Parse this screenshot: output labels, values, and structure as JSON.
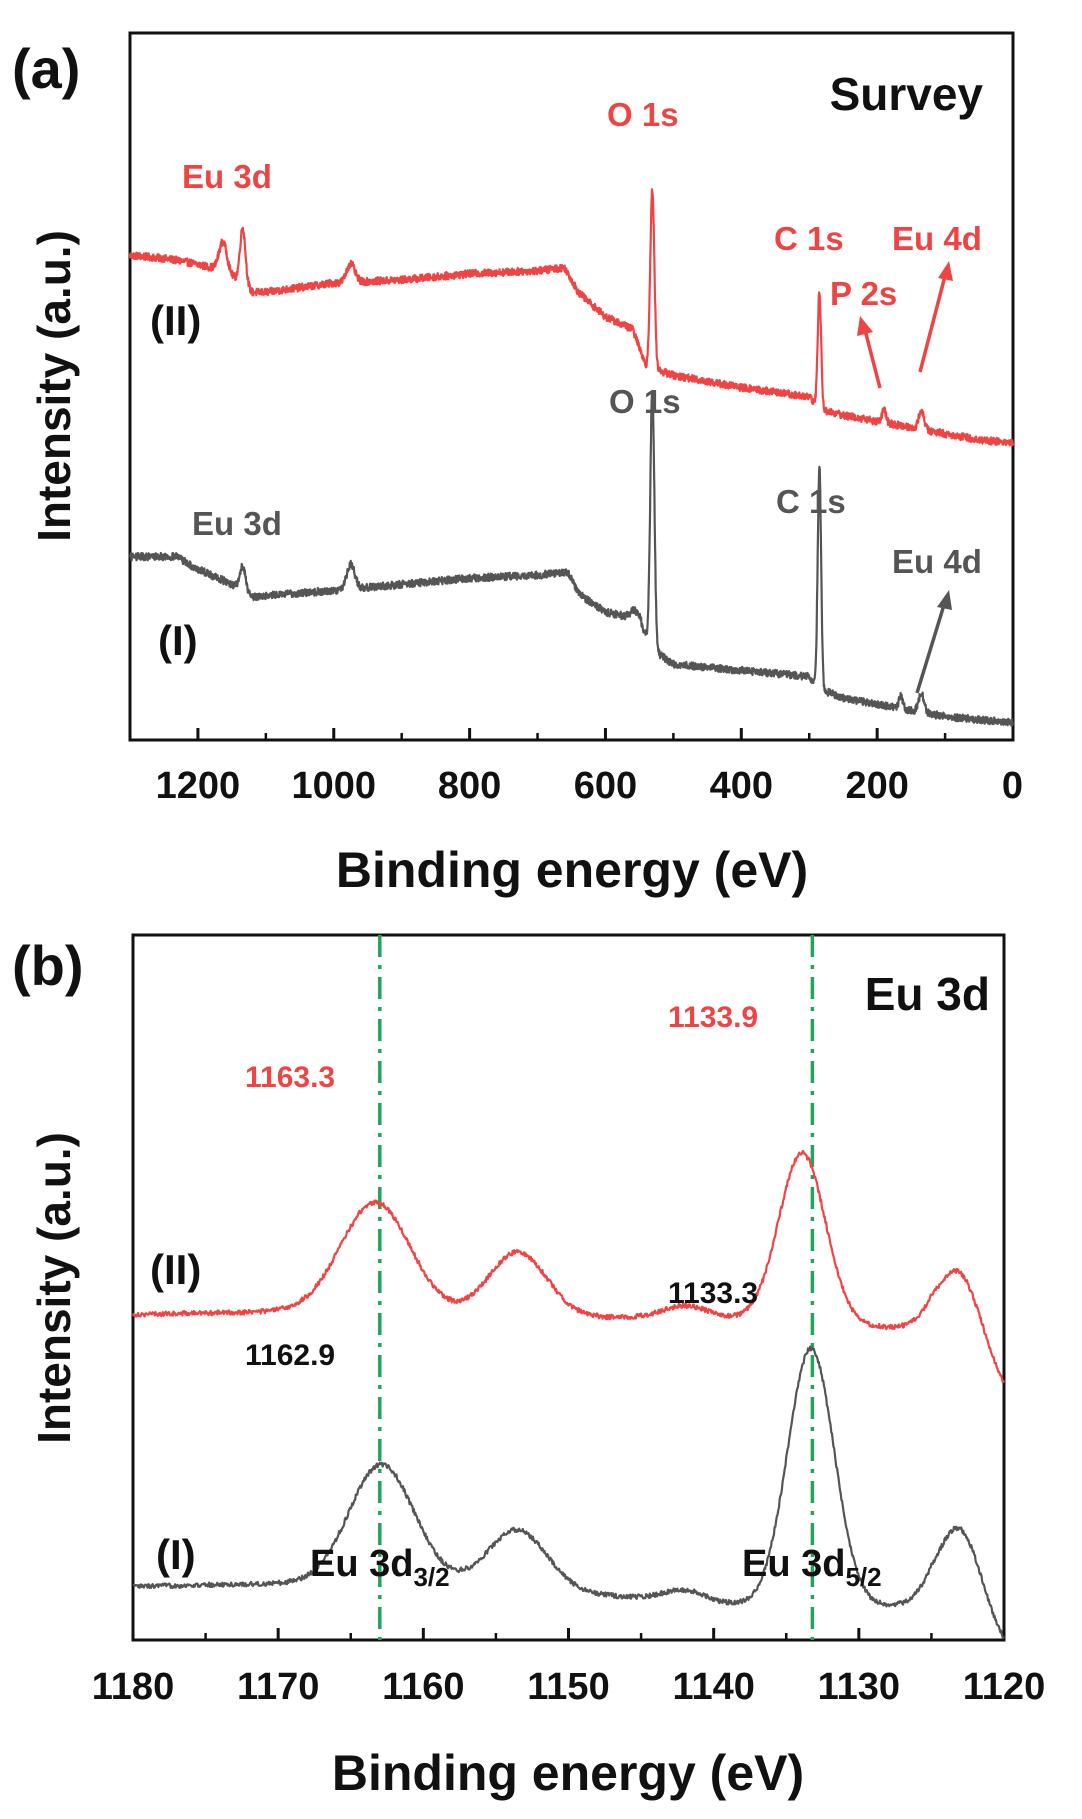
{
  "colors": {
    "red": "#ef4444",
    "gray": "#555555",
    "green": "#22a55b",
    "black": "#111111"
  },
  "chart_data": [
    {
      "type": "line",
      "panel_label": "(a)",
      "title": "Survey",
      "xlabel": "Binding energy (eV)",
      "ylabel": "Intensity (a.u.)",
      "xlim": [
        1300,
        0
      ],
      "ylim": [
        0,
        1
      ],
      "x_ticks": [
        "1200",
        "1000",
        "800",
        "600",
        "400",
        "200",
        "0"
      ],
      "x_tick_values": [
        1200,
        1000,
        800,
        600,
        400,
        200,
        0
      ],
      "series": [
        {
          "name": "(II)",
          "color": "#ef4444",
          "baseline": [
            [
              1300,
              0.78
            ],
            [
              1250,
              0.775
            ],
            [
              1220,
              0.77
            ],
            [
              1180,
              0.76
            ],
            [
              1140,
              0.74
            ],
            [
              1120,
              0.72
            ],
            [
              1100,
              0.72
            ],
            [
              1000,
              0.735
            ],
            [
              900,
              0.74
            ],
            [
              800,
              0.75
            ],
            [
              700,
              0.755
            ],
            [
              660,
              0.76
            ],
            [
              640,
              0.72
            ],
            [
              600,
              0.68
            ],
            [
              560,
              0.66
            ],
            [
              540,
              0.6
            ],
            [
              500,
              0.585
            ],
            [
              400,
              0.565
            ],
            [
              300,
              0.55
            ],
            [
              285,
              0.53
            ],
            [
              250,
              0.52
            ],
            [
              200,
              0.51
            ],
            [
              150,
              0.5
            ],
            [
              100,
              0.49
            ],
            [
              50,
              0.48
            ],
            [
              0,
              0.475
            ]
          ],
          "peaks": [
            [
              1163,
              0.05,
              6
            ],
            [
              1134,
              0.09,
              4
            ],
            [
              975,
              0.03,
              6
            ],
            [
              531,
              0.29,
              3
            ],
            [
              285,
              0.19,
              2.5
            ],
            [
              190,
              0.02,
              3
            ],
            [
              135,
              0.03,
              4
            ]
          ],
          "noise": 0.006
        },
        {
          "name": "(I)",
          "color": "#555555",
          "baseline": [
            [
              1300,
              0.29
            ],
            [
              1230,
              0.29
            ],
            [
              1210,
              0.275
            ],
            [
              1180,
              0.26
            ],
            [
              1140,
              0.24
            ],
            [
              1120,
              0.225
            ],
            [
              1000,
              0.235
            ],
            [
              900,
              0.245
            ],
            [
              800,
              0.255
            ],
            [
              700,
              0.26
            ],
            [
              655,
              0.265
            ],
            [
              640,
              0.23
            ],
            [
              600,
              0.2
            ],
            [
              560,
              0.19
            ],
            [
              545,
              0.15
            ],
            [
              500,
              0.115
            ],
            [
              400,
              0.105
            ],
            [
              300,
              0.095
            ],
            [
              285,
              0.075
            ],
            [
              250,
              0.06
            ],
            [
              200,
              0.05
            ],
            [
              150,
              0.04
            ],
            [
              100,
              0.03
            ],
            [
              50,
              0.025
            ],
            [
              0,
              0.02
            ]
          ],
          "peaks": [
            [
              1134,
              0.04,
              4
            ],
            [
              975,
              0.04,
              6
            ],
            [
              550,
              0.03,
              8
            ],
            [
              531,
              0.42,
              3
            ],
            [
              285,
              0.36,
              2.5
            ],
            [
              165,
              0.02,
              3
            ],
            [
              135,
              0.03,
              4
            ]
          ],
          "noise": 0.006
        }
      ],
      "annotations": [
        {
          "id": "II-eu3d",
          "text": "Eu 3d",
          "color": "#ef4444"
        },
        {
          "id": "II-o1s",
          "text": "O 1s",
          "color": "#ef4444"
        },
        {
          "id": "II-c1s",
          "text": "C 1s",
          "color": "#ef4444"
        },
        {
          "id": "II-eu4d",
          "text": "Eu 4d",
          "color": "#ef4444"
        },
        {
          "id": "II-p2s",
          "text": "P 2s",
          "color": "#ef4444"
        },
        {
          "id": "I-eu3d",
          "text": "Eu 3d",
          "color": "#555555"
        },
        {
          "id": "I-o1s",
          "text": "O 1s",
          "color": "#555555"
        },
        {
          "id": "I-c1s",
          "text": "C 1s",
          "color": "#555555"
        },
        {
          "id": "I-eu4d",
          "text": "Eu 4d",
          "color": "#555555"
        }
      ]
    },
    {
      "type": "line",
      "panel_label": "(b)",
      "title": "Eu 3d",
      "xlabel": "Binding energy (eV)",
      "ylabel": "Intensity (a.u.)",
      "xlim": [
        1180,
        1120
      ],
      "ylim": [
        0,
        1
      ],
      "x_ticks": [
        "1180",
        "1170",
        "1160",
        "1150",
        "1140",
        "1130",
        "1120"
      ],
      "x_tick_values": [
        1180,
        1170,
        1160,
        1150,
        1140,
        1130,
        1120
      ],
      "series": [
        {
          "name": "(II)",
          "color": "#ef4444",
          "baseline": [
            [
              1180,
              0.565
            ],
            [
              1170,
              0.57
            ],
            [
              1160,
              0.565
            ],
            [
              1150,
              0.56
            ],
            [
              1140,
              0.56
            ],
            [
              1130,
              0.545
            ],
            [
              1125,
              0.54
            ],
            [
              1120,
              0.43
            ]
          ],
          "peaks": [
            [
              1163.3,
              0.19,
              2.4
            ],
            [
              1153.5,
              0.11,
              2.0
            ],
            [
              1142,
              0.02,
              1.5
            ],
            [
              1133.9,
              0.29,
              1.6
            ],
            [
              1123,
              0.14,
              1.5
            ]
          ],
          "noise": 0.004
        },
        {
          "name": "(I)",
          "color": "#555555",
          "baseline": [
            [
              1180,
              0.1
            ],
            [
              1170,
              0.105
            ],
            [
              1160,
              0.11
            ],
            [
              1150,
              0.09
            ],
            [
              1140,
              0.07
            ],
            [
              1130,
              0.065
            ],
            [
              1125,
              0.07
            ],
            [
              1120,
              -0.01
            ]
          ],
          "peaks": [
            [
              1162.9,
              0.2,
              2.2
            ],
            [
              1153.5,
              0.1,
              2.0
            ],
            [
              1142,
              0.02,
              1.5
            ],
            [
              1133.3,
              0.44,
              1.6
            ],
            [
              1123,
              0.16,
              1.5
            ]
          ],
          "noise": 0.004
        }
      ],
      "vlines": [
        1163,
        1133.2
      ],
      "annotations": [
        {
          "id": "II-p1",
          "text": "1163.3",
          "color": "#ef4444"
        },
        {
          "id": "II-p2",
          "text": "1133.9",
          "color": "#ef4444"
        },
        {
          "id": "I-p1",
          "text": "1162.9",
          "color": "#111111"
        },
        {
          "id": "I-p2",
          "text": "1133.3",
          "color": "#111111"
        }
      ],
      "region_labels": [
        {
          "base": "Eu 3d",
          "sub": "3/2"
        },
        {
          "base": "Eu 3d",
          "sub": "5/2"
        }
      ]
    }
  ]
}
